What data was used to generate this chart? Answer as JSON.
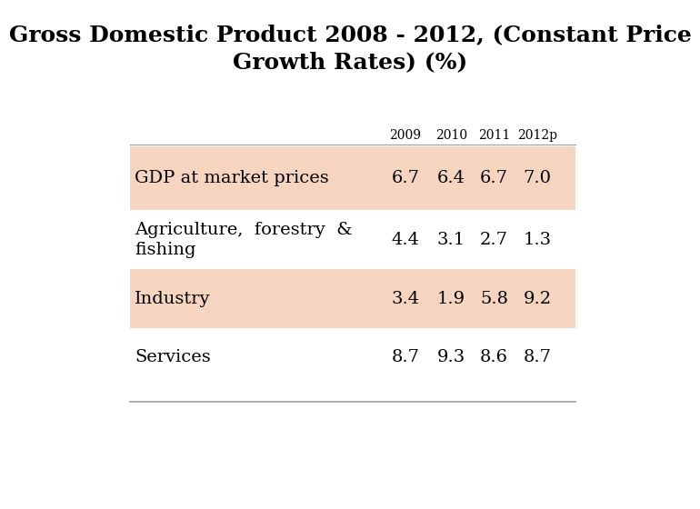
{
  "title": "Gross Domestic Product 2008 - 2012, (Constant Price\nGrowth Rates) (%)",
  "columns": [
    "",
    "2009",
    "2010",
    "2011",
    "2012p"
  ],
  "rows": [
    {
      "label": "GDP at market prices",
      "values": [
        "6.7",
        "6.4",
        "6.7",
        "7.0"
      ],
      "shaded": true
    },
    {
      "label": "Agriculture,  forestry  &\nfishing",
      "values": [
        "4.4",
        "3.1",
        "2.7",
        "1.3"
      ],
      "shaded": false
    },
    {
      "label": "Industry",
      "values": [
        "3.4",
        "1.9",
        "5.8",
        "9.2"
      ],
      "shaded": true
    },
    {
      "label": "Services",
      "values": [
        "8.7",
        "9.3",
        "8.6",
        "8.7"
      ],
      "shaded": false
    }
  ],
  "shaded_color": "#f5d5c0",
  "bg_color": "#ffffff",
  "title_fontsize": 18,
  "header_fontsize": 10,
  "cell_fontsize": 14,
  "label_fontsize": 14
}
